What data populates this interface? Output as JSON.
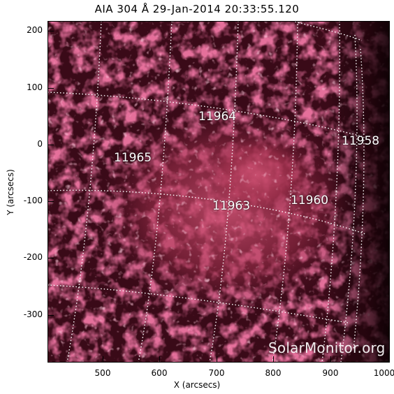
{
  "title": "AIA 304 Å 29-Jan-2014 20:33:55.120",
  "axes": {
    "xlabel": "X (arcsecs)",
    "ylabel": "Y (arcsecs)",
    "xticks": [
      "500",
      "600",
      "700",
      "800",
      "900",
      "1000"
    ],
    "yticks": [
      "200",
      "100",
      "0",
      "-100",
      "-200",
      "-300"
    ]
  },
  "regions": [
    "11964",
    "11958",
    "11965",
    "11963",
    "11960"
  ],
  "watermark": "SolarMonitor.org",
  "colors": {
    "background": "#0d0104",
    "plasma": "#c2385c",
    "bright": "#f0a5b8",
    "grid": "#ffffff"
  }
}
